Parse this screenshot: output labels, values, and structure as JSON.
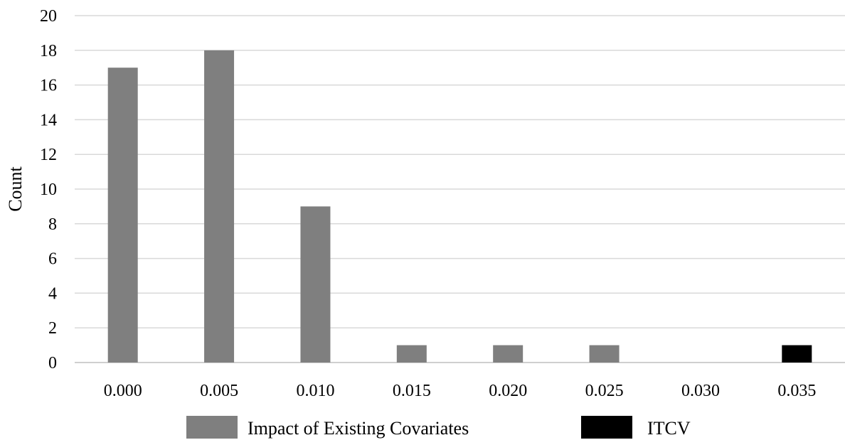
{
  "chart_data": {
    "type": "bar",
    "title": "",
    "xlabel": "",
    "ylabel": "Count",
    "ylim": [
      0,
      20
    ],
    "y_ticks": [
      0,
      2,
      4,
      6,
      8,
      10,
      12,
      14,
      16,
      18,
      20
    ],
    "grid": "horizontal",
    "legend_position": "bottom",
    "categories": [
      "0.000",
      "0.005",
      "0.010",
      "0.015",
      "0.020",
      "0.025",
      "0.030",
      "0.035"
    ],
    "series": [
      {
        "name": "Impact of Existing Covariates",
        "color": "#7f7f7f",
        "values": [
          17,
          18,
          9,
          1,
          1,
          1,
          0,
          0
        ]
      },
      {
        "name": "ITCV",
        "color": "#000000",
        "values": [
          0,
          0,
          0,
          0,
          0,
          0,
          0,
          1
        ]
      }
    ]
  }
}
